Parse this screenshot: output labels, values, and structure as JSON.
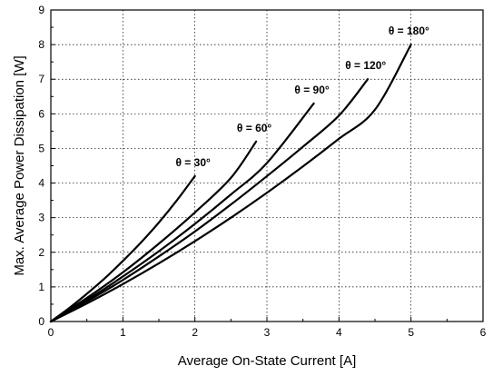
{
  "chart_data": {
    "type": "line",
    "title": "",
    "xlabel": "Average On-State Current [A]",
    "ylabel": "Max. Average Power Dissipation [W]",
    "xlim": [
      0,
      6
    ],
    "ylim": [
      0,
      9
    ],
    "x_ticks": [
      "0",
      "1",
      "2",
      "3",
      "4",
      "5",
      "6"
    ],
    "y_ticks": [
      "0",
      "1",
      "2",
      "3",
      "4",
      "5",
      "6",
      "7",
      "8",
      "9"
    ],
    "grid": "dotted",
    "colors": {
      "line": "#000000",
      "grid": "#000000",
      "frame": "#000000"
    },
    "series": [
      {
        "name": "θ = 30°",
        "x": [
          0,
          0.25,
          0.5,
          0.75,
          1.0,
          1.25,
          1.5,
          1.75,
          2.0
        ],
        "y": [
          0,
          0.38,
          0.8,
          1.25,
          1.75,
          2.28,
          2.86,
          3.5,
          4.2
        ]
      },
      {
        "name": "θ = 60°",
        "x": [
          0,
          0.5,
          1.0,
          1.5,
          2.0,
          2.5,
          2.85
        ],
        "y": [
          0,
          0.68,
          1.42,
          2.25,
          3.15,
          4.15,
          5.2
        ]
      },
      {
        "name": "θ = 90°",
        "x": [
          0,
          0.5,
          1.0,
          1.5,
          2.0,
          2.5,
          3.0,
          3.65
        ],
        "y": [
          0,
          0.62,
          1.3,
          2.03,
          2.82,
          3.67,
          4.58,
          6.3
        ]
      },
      {
        "name": "θ = 120°",
        "x": [
          0,
          0.5,
          1.0,
          1.5,
          2.0,
          2.5,
          3.0,
          3.5,
          4.0,
          4.4
        ],
        "y": [
          0,
          0.58,
          1.2,
          1.88,
          2.6,
          3.38,
          4.2,
          5.05,
          5.95,
          7.0
        ]
      },
      {
        "name": "θ = 180°",
        "x": [
          0,
          0.5,
          1.0,
          1.5,
          2.0,
          2.5,
          3.0,
          3.5,
          4.0,
          4.5,
          5.0
        ],
        "y": [
          0,
          0.52,
          1.08,
          1.68,
          2.32,
          3.0,
          3.72,
          4.48,
          5.28,
          6.12,
          8.0
        ]
      }
    ]
  }
}
